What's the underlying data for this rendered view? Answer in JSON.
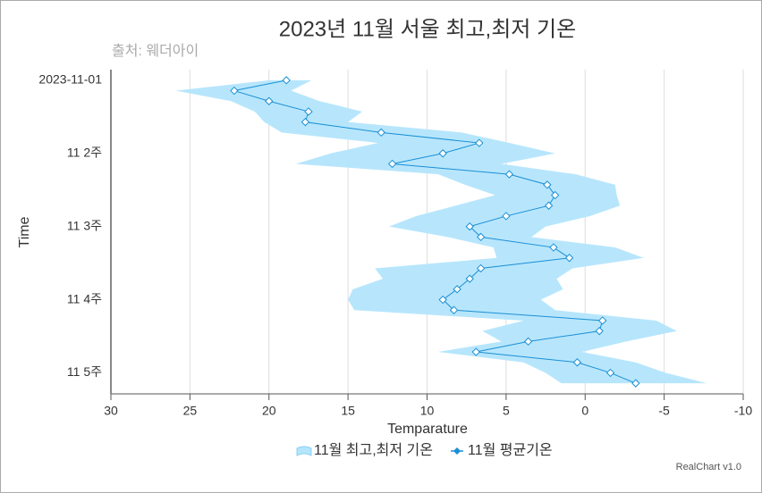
{
  "chart_data": {
    "type": "arearange-line",
    "inverted": true,
    "title": "2023년 11월 서울 최고,최저 기온",
    "subtitle": "출처: 웨더아이",
    "x_label": "Time",
    "y_label": "Temparature",
    "credits": "RealChart v1.0",
    "categories": [
      "2023-11-01",
      null,
      null,
      null,
      null,
      null,
      null,
      "11 2주",
      null,
      null,
      null,
      null,
      null,
      null,
      "11 3주",
      null,
      null,
      null,
      null,
      null,
      null,
      "11 4주",
      null,
      null,
      null,
      null,
      null,
      null,
      "11 5주",
      null
    ],
    "ylim": [
      30,
      -10
    ],
    "yticks": [
      30,
      25,
      20,
      15,
      10,
      5,
      0,
      -5,
      -10
    ],
    "grid": true,
    "series": [
      {
        "name": "11월 최고,최저 기온",
        "type": "arearange",
        "color": "#b3e5fc",
        "high": [
          20.0,
          25.9,
          22.4,
          20.9,
          20.3,
          19.2,
          13.1,
          16.1,
          18.3,
          9.3,
          7.6,
          5.7,
          8.2,
          10.7,
          12.4,
          8.7,
          5.8,
          5.6,
          13.3,
          12.8,
          14.7,
          15.0,
          14.6,
          3.9,
          6.5,
          5.3,
          9.3,
          3.9,
          2.5,
          1.5
        ],
        "low": [
          17.3,
          18.6,
          16.8,
          14.1,
          15.0,
          7.8,
          4.8,
          1.9,
          5.3,
          0.6,
          -1.9,
          -2.0,
          -2.2,
          -0.3,
          2.5,
          3.4,
          -1.9,
          -3.7,
          0.8,
          1.8,
          1.4,
          2.8,
          1.9,
          -4.5,
          -5.8,
          -2.6,
          0.2,
          -3.2,
          -5.1,
          -7.7
        ]
      },
      {
        "name": "11월 평균기온",
        "type": "line",
        "color": "#1a8fd6",
        "values": [
          18.9,
          22.2,
          20.0,
          17.5,
          17.7,
          12.9,
          6.7,
          9.0,
          12.2,
          4.8,
          2.4,
          1.9,
          2.3,
          5.0,
          7.3,
          6.6,
          2.0,
          1.0,
          6.6,
          7.3,
          8.1,
          9.0,
          8.3,
          -1.1,
          -0.9,
          3.6,
          6.9,
          0.5,
          -1.6,
          -3.2
        ]
      }
    ]
  }
}
